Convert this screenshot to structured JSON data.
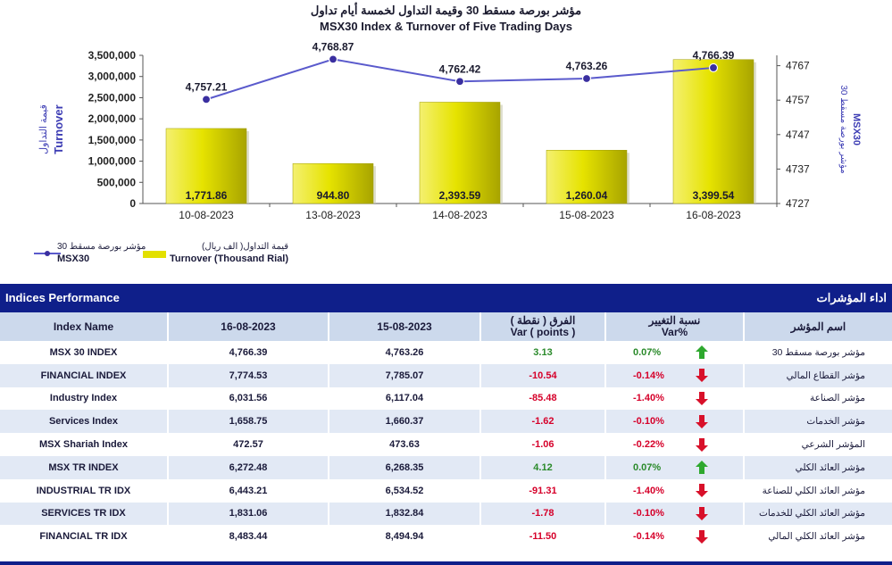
{
  "chart_data": {
    "type": "bar+line",
    "title_ar": "مؤشر بورصة مسقط 30 وقيمة التداول لخمسة أيام تداول",
    "title": "MSX30 Index & Turnover of Five Trading Days",
    "categories": [
      "10-08-2023",
      "13-08-2023",
      "14-08-2023",
      "15-08-2023",
      "16-08-2023"
    ],
    "series": [
      {
        "name": "Turnover (Thousand Rial)",
        "name_ar": "قيمة التداول( الف ريال)",
        "type": "bar",
        "axis": "left",
        "values": [
          1771.86,
          944.8,
          2393.59,
          1260.04,
          3399.54
        ],
        "labels": [
          "1,771.86",
          "944.80",
          "2,393.59",
          "1,260.04",
          "3,399.54"
        ],
        "color": "#e3e000"
      },
      {
        "name": "MSX30",
        "name_ar": "مؤشر بورصة مسقط 30",
        "type": "line",
        "axis": "right",
        "values": [
          4757.21,
          4768.87,
          4762.42,
          4763.26,
          4766.39
        ],
        "labels": [
          "4,757.21",
          "4,768.87",
          "4,762.42",
          "4,763.26",
          "4,766.39"
        ],
        "color": "#5a5acc"
      }
    ],
    "ylabel_left": "Turnover",
    "ylabel_left_ar": "قيمة التداول",
    "ylabel_right": "MSX30",
    "ylabel_right_ar": "مؤشر بورصة مسقط 30",
    "y_left": {
      "min": 0,
      "max": 3500000,
      "ticks": [
        0,
        500000,
        1000000,
        1500000,
        2000000,
        2500000,
        3000000,
        3500000
      ],
      "tick_labels": [
        "0",
        "500,000",
        "1,000,000",
        "1,500,000",
        "2,000,000",
        "2,500,000",
        "3,000,000",
        "3,500,000"
      ]
    },
    "y_right": {
      "min": 4727,
      "max": 4770,
      "ticks": [
        4727,
        4737,
        4747,
        4757,
        4767
      ],
      "tick_labels": [
        "4727",
        "4737",
        "4747",
        "4757",
        "4767"
      ]
    },
    "grid": false,
    "legend": "bottom-left"
  },
  "section": {
    "title_en": "Indices Performance",
    "title_ar": "اداء المؤشرات"
  },
  "table": {
    "headers": {
      "name": "Index Name",
      "d1": "16-08-2023",
      "d2": "15-08-2023",
      "diff_ar": "الفرق ( نقطة )",
      "diff_en": "Var ( points )",
      "pct_ar": "نسبة التغيير",
      "pct_en": "Var%",
      "name_ar": "اسم المؤشر"
    },
    "rows": [
      {
        "name": "MSX 30 INDEX",
        "d1": "4,766.39",
        "d2": "4,763.26",
        "diff": "3.13",
        "pct": "0.07%",
        "dir": "up",
        "name_ar": "مؤشر بورصة مسقط 30"
      },
      {
        "name": "FINANCIAL INDEX",
        "d1": "7,774.53",
        "d2": "7,785.07",
        "diff": "-10.54",
        "pct": "-0.14%",
        "dir": "down",
        "name_ar": "مؤشر القطاع المالي"
      },
      {
        "name": "Industry Index",
        "d1": "6,031.56",
        "d2": "6,117.04",
        "diff": "-85.48",
        "pct": "-1.40%",
        "dir": "down",
        "name_ar": "مؤشر الصناعة"
      },
      {
        "name": "Services Index",
        "d1": "1,658.75",
        "d2": "1,660.37",
        "diff": "-1.62",
        "pct": "-0.10%",
        "dir": "down",
        "name_ar": "مؤشر الخدمات"
      },
      {
        "name": "MSX Shariah Index",
        "d1": "472.57",
        "d2": "473.63",
        "diff": "-1.06",
        "pct": "-0.22%",
        "dir": "down",
        "name_ar": "المؤشر الشرعي"
      },
      {
        "name": "MSX TR INDEX",
        "d1": "6,272.48",
        "d2": "6,268.35",
        "diff": "4.12",
        "pct": "0.07%",
        "dir": "up",
        "name_ar": "مؤشر العائد الكلي"
      },
      {
        "name": "INDUSTRIAL TR IDX",
        "d1": "6,443.21",
        "d2": "6,534.52",
        "diff": "-91.31",
        "pct": "-1.40%",
        "dir": "down",
        "name_ar": "مؤشر العائد الكلي للصناعة"
      },
      {
        "name": "SERVICES TR IDX",
        "d1": "1,831.06",
        "d2": "1,832.84",
        "diff": "-1.78",
        "pct": "-0.10%",
        "dir": "down",
        "name_ar": "مؤشر العائد الكلي للخدمات"
      },
      {
        "name": "FINANCIAL TR IDX",
        "d1": "8,483.44",
        "d2": "8,494.94",
        "diff": "-11.50",
        "pct": "-0.14%",
        "dir": "down",
        "name_ar": "مؤشر العائد الكلي المالي"
      }
    ]
  },
  "colors": {
    "band": "#0f1f8a",
    "header_bg": "#ccd9ec",
    "row_alt": "#e2e9f5",
    "positive": "#2a8a2a",
    "negative": "#d6002a",
    "bar": "#e3e000",
    "line": "#5a5acc"
  }
}
